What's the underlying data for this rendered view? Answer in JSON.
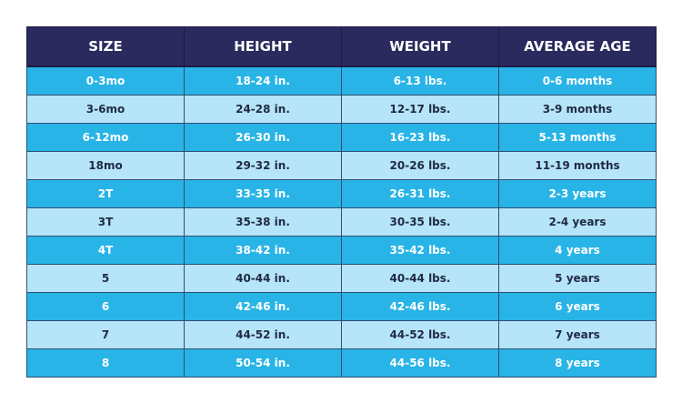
{
  "table": {
    "header": [
      "SIZE",
      "HEIGHT",
      "WEIGHT",
      "AVERAGE AGE"
    ],
    "rows": [
      [
        "0-3mo",
        "18-24 in.",
        "6-13 lbs.",
        "0-6 months"
      ],
      [
        "3-6mo",
        "24-28 in.",
        "12-17 lbs.",
        "3-9 months"
      ],
      [
        "6-12mo",
        "26-30 in.",
        "16-23 lbs.",
        "5-13 months"
      ],
      [
        "18mo",
        "29-32 in.",
        "20-26 lbs.",
        "11-19 months"
      ],
      [
        "2T",
        "33-35 in.",
        "26-31 lbs.",
        "2-3 years"
      ],
      [
        "3T",
        "35-38 in.",
        "30-35 lbs.",
        "2-4 years"
      ],
      [
        "4T",
        "38-42 in.",
        "35-42 lbs.",
        "4 years"
      ],
      [
        "5",
        "40-44 in.",
        "40-44 lbs.",
        "5 years"
      ],
      [
        "6",
        "42-46 in.",
        "42-46 lbs.",
        "6 years"
      ],
      [
        "7",
        "44-52 in.",
        "44-52 lbs.",
        "7 years"
      ],
      [
        "8",
        "50-54 in.",
        "44-56 lbs.",
        "8 years"
      ]
    ]
  }
}
